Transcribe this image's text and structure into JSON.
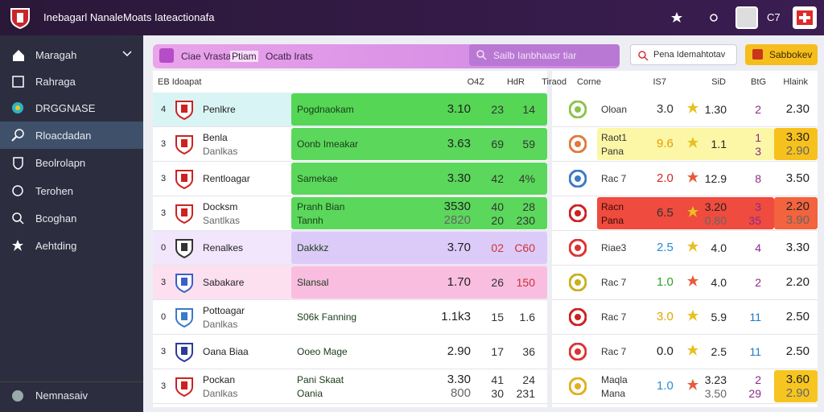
{
  "header": {
    "title": "Inebagarl Nanale",
    "subtitle": "Moats Iateactionafa",
    "user": "C7"
  },
  "sidebar": {
    "items": [
      "Maragah",
      "Rahraga",
      "DRGGNASE",
      "Rloacdadan",
      "Beolrolapn",
      "Terohen",
      "Bcoghan",
      "Aehtding"
    ],
    "footer": "Nemnasaiv"
  },
  "toolbar": {
    "tabs": [
      "Ciae Vrasta",
      "Ptiam",
      "Ocatb Irats"
    ],
    "search": "Sailb Ianbhaasr tiar",
    "input": "Pena Idemahtotav",
    "button": "Sabbokev"
  },
  "left_table": {
    "headers": [
      "EB Idoapat",
      "O4Z",
      "HdR"
    ],
    "rows": [
      {
        "rank": "4",
        "name": [
          "Penlkre"
        ],
        "cell": [
          "Pogdnaokam"
        ],
        "a": [
          "3.10"
        ],
        "b": [
          "23"
        ],
        "c": [
          "14"
        ]
      },
      {
        "rank": "3",
        "name": [
          "Benla",
          "Danlkas"
        ],
        "cell": [
          "Oonb Imeakar"
        ],
        "a": [
          "3.63"
        ],
        "b": [
          "69"
        ],
        "c": [
          "59"
        ]
      },
      {
        "rank": "3",
        "name": [
          "Rentloagar"
        ],
        "cell": [
          "Samekae"
        ],
        "a": [
          "3.30"
        ],
        "b": [
          "42"
        ],
        "c": [
          "4%"
        ]
      },
      {
        "rank": "3",
        "name": [
          "Docksm",
          "Santlkas"
        ],
        "cell": [
          "Pranh Bian",
          "Tannh"
        ],
        "a": [
          "3530",
          "2820"
        ],
        "b": [
          "40",
          "20"
        ],
        "c": [
          "28",
          "230"
        ]
      },
      {
        "rank": "0",
        "name": [
          "Renalkes"
        ],
        "cell": [
          "Dakkkz"
        ],
        "a": [
          "3.70"
        ],
        "b": [
          "02"
        ],
        "c": [
          "C60"
        ]
      },
      {
        "rank": "3",
        "name": [
          "Sabakare"
        ],
        "cell": [
          "Slansal"
        ],
        "a": [
          "1.70"
        ],
        "b": [
          "26"
        ],
        "c": [
          "150"
        ]
      },
      {
        "rank": "0",
        "name": [
          "Pottoagar",
          "Danlkas"
        ],
        "cell": [
          "S06k Fanning"
        ],
        "a": [
          "1.1k3"
        ],
        "b": [
          "15"
        ],
        "c": [
          "1.6"
        ]
      },
      {
        "rank": "3",
        "name": [
          "Oana Biaa"
        ],
        "cell": [
          "Ooeo Mage"
        ],
        "a": [
          "2.90"
        ],
        "b": [
          "17"
        ],
        "c": [
          "36"
        ]
      },
      {
        "rank": "3",
        "name": [
          "Pockan",
          "Danlkas"
        ],
        "cell": [
          "Pani Skaat",
          "Oania"
        ],
        "a": [
          "3.30",
          "800"
        ],
        "b": [
          "41",
          "30"
        ],
        "c": [
          "24",
          "231"
        ]
      }
    ]
  },
  "right_table": {
    "headers": [
      "Tiraod",
      "Corne",
      "IS7",
      "SiD",
      "BtG",
      "Hlaink"
    ],
    "rows": [
      {
        "label": [
          "Oloan"
        ],
        "a": [
          "3.0"
        ],
        "b": [
          "1.30"
        ],
        "c": [
          "2"
        ],
        "d": [
          "2.30"
        ]
      },
      {
        "label": [
          "Raot1",
          "Pana"
        ],
        "a": [
          "9.6"
        ],
        "b": [
          "1.1"
        ],
        "c": [
          "1",
          "3"
        ],
        "d": [
          "3.30",
          "2.90"
        ]
      },
      {
        "label": [
          "Rac 7"
        ],
        "a": [
          "2.0"
        ],
        "b": [
          "12.9"
        ],
        "c": [
          "8"
        ],
        "d": [
          "3.50"
        ]
      },
      {
        "label": [
          "Racn",
          "Pana"
        ],
        "a": [
          "6.5"
        ],
        "b": [
          "3.20",
          "0.80"
        ],
        "c": [
          "3",
          "35"
        ],
        "d": [
          "2.20",
          "3.90"
        ]
      },
      {
        "label": [
          "Riae3"
        ],
        "a": [
          "2.5"
        ],
        "b": [
          "4.0"
        ],
        "c": [
          "4"
        ],
        "d": [
          "3.30"
        ]
      },
      {
        "label": [
          "Rac 7"
        ],
        "a": [
          "1.0"
        ],
        "b": [
          "4.0"
        ],
        "c": [
          "2"
        ],
        "d": [
          "2.20"
        ]
      },
      {
        "label": [
          "Rac 7"
        ],
        "a": [
          "3.0"
        ],
        "b": [
          "5.9"
        ],
        "c": [
          "11"
        ],
        "d": [
          "2.50"
        ]
      },
      {
        "label": [
          "Rac 7"
        ],
        "a": [
          "0.0"
        ],
        "b": [
          "2.5"
        ],
        "c": [
          "11"
        ],
        "d": [
          "2.50"
        ]
      },
      {
        "label": [
          "Maqla",
          "Mana"
        ],
        "a": [
          "1.0"
        ],
        "b": [
          "3.23",
          "3.50"
        ],
        "c": [
          "2",
          "29"
        ],
        "d": [
          "3.60",
          "2.90"
        ]
      }
    ]
  }
}
